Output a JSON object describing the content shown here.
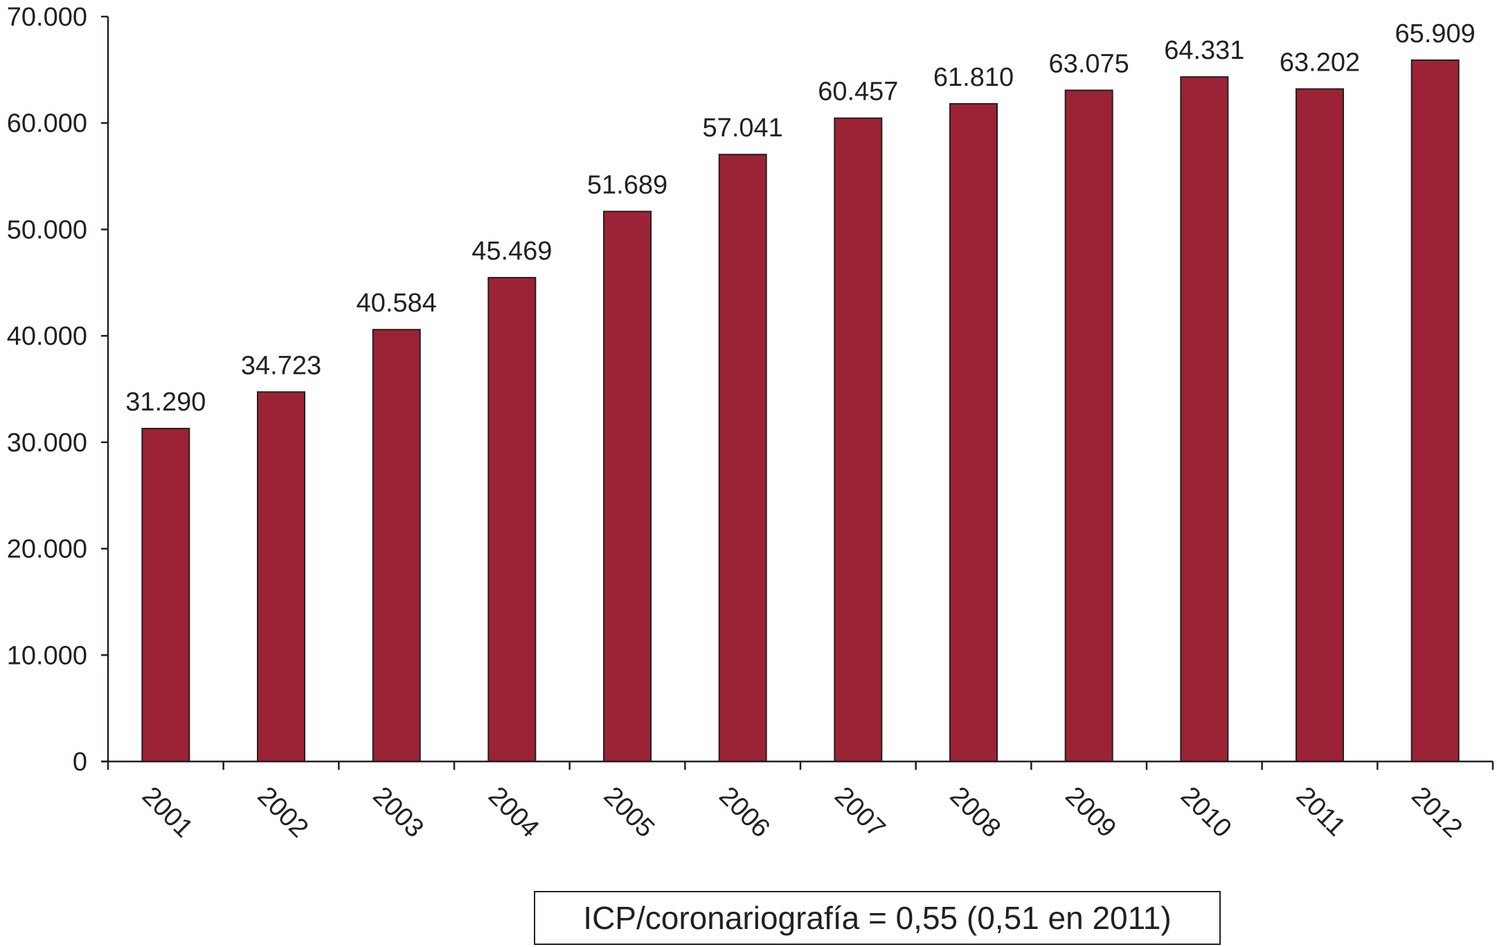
{
  "chart_data": {
    "type": "bar",
    "categories": [
      "2001",
      "2002",
      "2003",
      "2004",
      "2005",
      "2006",
      "2007",
      "2008",
      "2009",
      "2010",
      "2011",
      "2012"
    ],
    "values": [
      31290,
      34723,
      40584,
      45469,
      51689,
      57041,
      60457,
      61810,
      63075,
      64331,
      63202,
      65909
    ],
    "data_labels": [
      "31.290",
      "34.723",
      "40.584",
      "45.469",
      "51.689",
      "57.041",
      "60.457",
      "61.810",
      "63.075",
      "64.331",
      "63.202",
      "65.909"
    ],
    "ylim": [
      0,
      70000
    ],
    "yticks": [
      0,
      10000,
      20000,
      30000,
      40000,
      50000,
      60000,
      70000
    ],
    "ytick_labels": [
      "0",
      "10.000",
      "20.000",
      "30.000",
      "40.000",
      "50.000",
      "60.000",
      "70.000"
    ],
    "title": "",
    "xlabel": "",
    "ylabel": "",
    "grid": false,
    "bar_color": "#9b2335",
    "annotation": "ICP/coronariografía = 0,55 (0,51 en 2011)"
  }
}
